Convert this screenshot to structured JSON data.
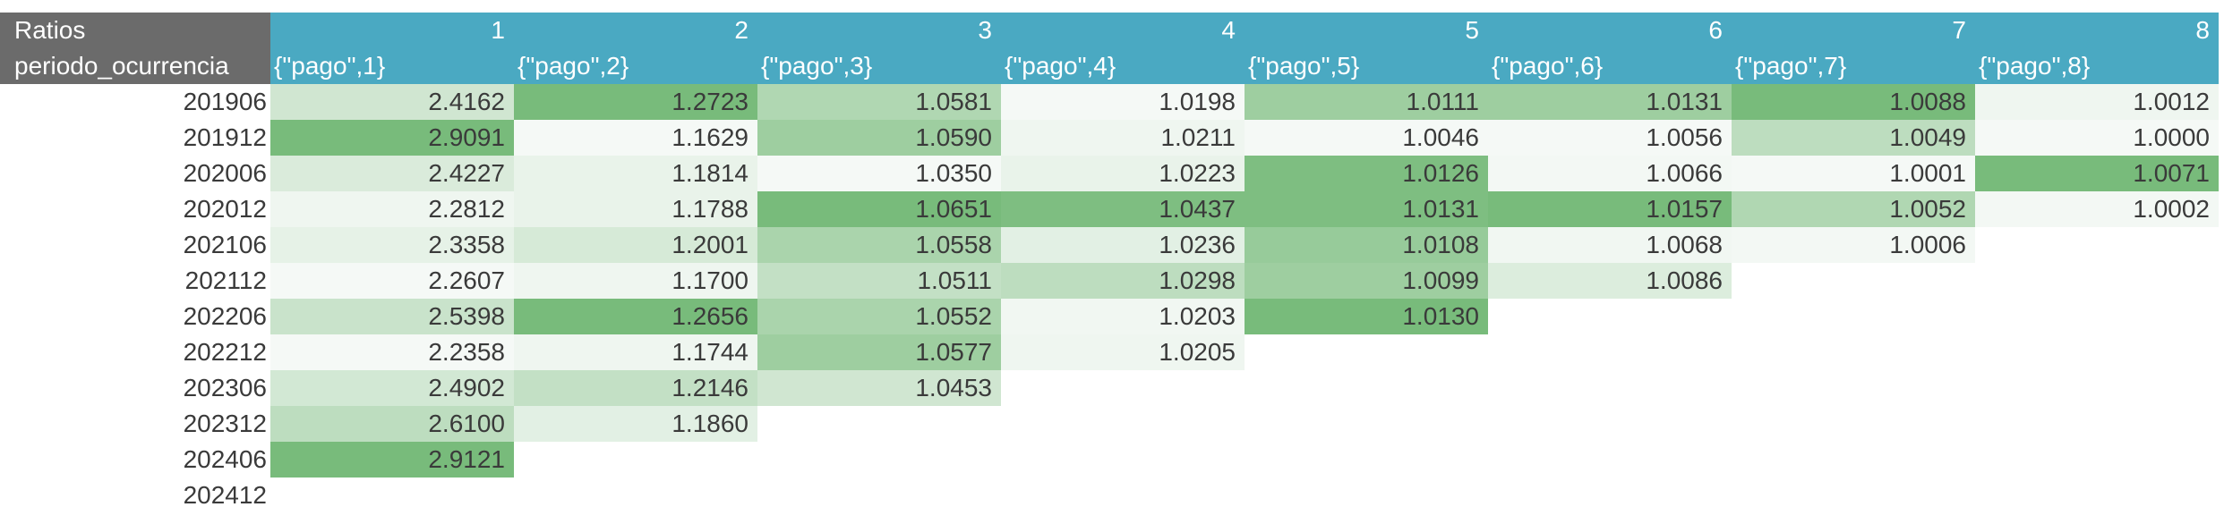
{
  "header": {
    "corner_top": "Ratios",
    "corner_bottom": "periodo_ocurrencia",
    "columns": [
      {
        "num": "1",
        "pago": "{\"pago\",1}"
      },
      {
        "num": "2",
        "pago": "{\"pago\",2}"
      },
      {
        "num": "3",
        "pago": "{\"pago\",3}"
      },
      {
        "num": "4",
        "pago": "{\"pago\",4}"
      },
      {
        "num": "5",
        "pago": "{\"pago\",5}"
      },
      {
        "num": "6",
        "pago": "{\"pago\",6}"
      },
      {
        "num": "7",
        "pago": "{\"pago\",7}"
      },
      {
        "num": "8",
        "pago": "{\"pago\",8}"
      }
    ]
  },
  "colors": {
    "header_bg": "#4aa9c2",
    "corner_bg": "#6b6b6b",
    "scale_low": "#f5f9f6",
    "scale_high": "#78bb7b"
  },
  "rows": [
    {
      "period": "201906",
      "values": [
        "2.4162",
        "1.2723",
        "1.0581",
        "1.0198",
        "1.0111",
        "1.0131",
        "1.0088",
        "1.0012"
      ],
      "intensity": [
        0.3,
        1.0,
        0.55,
        0.0,
        0.7,
        0.7,
        1.0,
        0.05
      ]
    },
    {
      "period": "201912",
      "values": [
        "2.9091",
        "1.1629",
        "1.0590",
        "1.0211",
        "1.0046",
        "1.0056",
        "1.0049",
        "1.0000"
      ],
      "intensity": [
        1.0,
        0.0,
        0.7,
        0.05,
        0.0,
        0.0,
        0.45,
        0.0
      ]
    },
    {
      "period": "202006",
      "values": [
        "2.4227",
        "1.1814",
        "1.0350",
        "1.0223",
        "1.0126",
        "1.0066",
        "1.0001",
        "1.0071"
      ],
      "intensity": [
        0.22,
        0.1,
        0.0,
        0.1,
        0.95,
        0.02,
        0.0,
        1.0
      ]
    },
    {
      "period": "202012",
      "values": [
        "2.2812",
        "1.1788",
        "1.0651",
        "1.0437",
        "1.0131",
        "1.0157",
        "1.0052",
        "1.0002"
      ],
      "intensity": [
        0.05,
        0.1,
        1.0,
        0.95,
        0.95,
        1.0,
        0.55,
        0.02
      ]
    },
    {
      "period": "202106",
      "values": [
        "2.3358",
        "1.2001",
        "1.0558",
        "1.0236",
        "1.0108",
        "1.0068",
        "1.0006",
        null
      ],
      "intensity": [
        0.12,
        0.25,
        0.6,
        0.15,
        0.75,
        0.03,
        0.02,
        null
      ]
    },
    {
      "period": "202112",
      "values": [
        "2.2607",
        "1.1700",
        "1.0511",
        "1.0298",
        "1.0099",
        "1.0086",
        null,
        null
      ],
      "intensity": [
        0.0,
        0.05,
        0.4,
        0.45,
        0.7,
        0.2,
        null,
        null
      ]
    },
    {
      "period": "202206",
      "values": [
        "2.5398",
        "1.2656",
        "1.0552",
        "1.0203",
        "1.0130",
        null,
        null,
        null
      ],
      "intensity": [
        0.35,
        1.0,
        0.6,
        0.03,
        1.0,
        null,
        null,
        null
      ]
    },
    {
      "period": "202212",
      "values": [
        "2.2358",
        "1.1744",
        "1.0577",
        "1.0205",
        null,
        null,
        null,
        null
      ],
      "intensity": [
        0.0,
        0.05,
        0.7,
        0.05,
        null,
        null,
        null,
        null
      ]
    },
    {
      "period": "202306",
      "values": [
        "2.4902",
        "1.2146",
        "1.0453",
        null,
        null,
        null,
        null,
        null
      ],
      "intensity": [
        0.28,
        0.4,
        0.3,
        null,
        null,
        null,
        null,
        null
      ]
    },
    {
      "period": "202312",
      "values": [
        "2.6100",
        "1.1860",
        null,
        null,
        null,
        null,
        null,
        null
      ],
      "intensity": [
        0.45,
        0.15,
        null,
        null,
        null,
        null,
        null,
        null
      ]
    },
    {
      "period": "202406",
      "values": [
        "2.9121",
        null,
        null,
        null,
        null,
        null,
        null,
        null
      ],
      "intensity": [
        1.0,
        null,
        null,
        null,
        null,
        null,
        null,
        null
      ]
    },
    {
      "period": "202412",
      "values": [
        null,
        null,
        null,
        null,
        null,
        null,
        null,
        null
      ],
      "intensity": [
        null,
        null,
        null,
        null,
        null,
        null,
        null,
        null
      ]
    }
  ]
}
